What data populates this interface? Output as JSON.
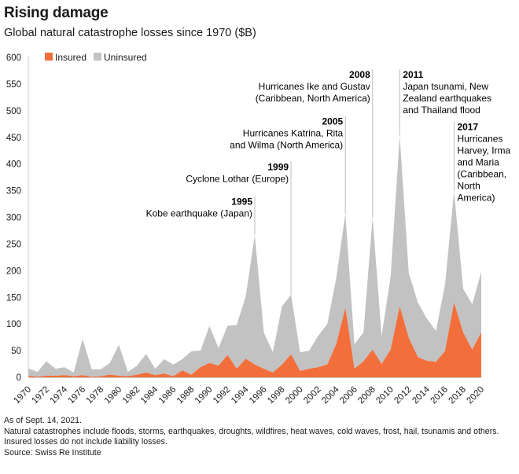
{
  "header": {
    "title": "Rising damage",
    "subtitle": "Global natural catastrophe losses since 1970 ($B)"
  },
  "footnotes": [
    "As of Sept. 14, 2021.",
    "Natural catastrophes include floods, storms, earthquakes, droughts, wildfires, heat waves, cold waves, frost, hail, tsunamis and others.",
    "Insured losses do not include liability losses.",
    "Source: Swiss Re Institute"
  ],
  "colors": {
    "insured": "#F26E3A",
    "uninsured": "#C2C2C2",
    "axis": "#cfcfcf",
    "annotation_line": "#bdbdbd"
  },
  "chart_data": {
    "type": "area",
    "stacked": true,
    "title": "Rising damage",
    "subtitle": "Global natural catastrophe losses since 1970 ($B)",
    "xlabel": "",
    "ylabel": "",
    "ylim": [
      0,
      600
    ],
    "yticks": [
      0,
      50,
      100,
      150,
      200,
      250,
      300,
      350,
      400,
      450,
      500,
      550,
      600
    ],
    "xlim": [
      1970,
      2020
    ],
    "xticks": [
      1970,
      1972,
      1974,
      1976,
      1978,
      1980,
      1982,
      1984,
      1986,
      1988,
      1990,
      1992,
      1994,
      1996,
      1998,
      2000,
      2002,
      2004,
      2006,
      2008,
      2010,
      2012,
      2014,
      2016,
      2018,
      2020
    ],
    "grid": false,
    "legend": {
      "placement": "top-left",
      "entries": [
        "Insured",
        "Uninsured"
      ]
    },
    "x": [
      1970,
      1971,
      1972,
      1973,
      1974,
      1975,
      1976,
      1977,
      1978,
      1979,
      1980,
      1981,
      1982,
      1983,
      1984,
      1985,
      1986,
      1987,
      1988,
      1989,
      1990,
      1991,
      1992,
      1993,
      1994,
      1995,
      1996,
      1997,
      1998,
      1999,
      2000,
      2001,
      2002,
      2003,
      2004,
      2005,
      2006,
      2007,
      2008,
      2009,
      2010,
      2011,
      2012,
      2013,
      2014,
      2015,
      2016,
      2017,
      2018,
      2019,
      2020
    ],
    "total": [
      17,
      10,
      30,
      16,
      19,
      9,
      72,
      15,
      15,
      27,
      61,
      10,
      22,
      44,
      16,
      34,
      24,
      34,
      49,
      50,
      96,
      55,
      97,
      98,
      152,
      267,
      84,
      47,
      133,
      155,
      47,
      50,
      78,
      100,
      187,
      307,
      62,
      84,
      300,
      77,
      190,
      453,
      196,
      140,
      110,
      87,
      174,
      349,
      166,
      137,
      198
    ],
    "series": [
      {
        "name": "Insured",
        "values": [
          3,
          1,
          3,
          3,
          4,
          2,
          4,
          1,
          2,
          5,
          3,
          2,
          5,
          9,
          4,
          7,
          2,
          13,
          5,
          19,
          27,
          22,
          42,
          16,
          35,
          24,
          16,
          9,
          24,
          43,
          12,
          16,
          19,
          24,
          63,
          130,
          16,
          30,
          52,
          25,
          52,
          133,
          74,
          38,
          31,
          29,
          49,
          140,
          84,
          52,
          84
        ]
      },
      {
        "name": "Uninsured",
        "values": [
          14,
          9,
          27,
          13,
          15,
          7,
          68,
          14,
          13,
          22,
          58,
          8,
          17,
          35,
          12,
          27,
          22,
          21,
          44,
          31,
          69,
          33,
          55,
          82,
          117,
          243,
          68,
          38,
          109,
          112,
          35,
          34,
          59,
          76,
          124,
          177,
          46,
          54,
          248,
          52,
          138,
          320,
          122,
          102,
          79,
          58,
          125,
          209,
          82,
          85,
          114
        ]
      }
    ],
    "annotations": [
      {
        "year": "1995",
        "x": 1995,
        "top": 340,
        "lines": [
          "Kobe earthquake (Japan)"
        ],
        "align": "right"
      },
      {
        "year": "1999",
        "x": 1999,
        "top": 405,
        "lines": [
          "Cyclone Lothar (Europe)"
        ],
        "align": "right"
      },
      {
        "year": "2005",
        "x": 2005,
        "top": 490,
        "lines": [
          "Hurricanes Katrina, Rita",
          "and Wilma (North America)"
        ],
        "align": "right"
      },
      {
        "year": "2008",
        "x": 2008,
        "top": 578,
        "lines": [
          "Hurricanes Ike and Gustav",
          "(Caribbean, North America)"
        ],
        "align": "right"
      },
      {
        "year": "2011",
        "x": 2011,
        "top": 578,
        "lines": [
          "Japan tsunami, New",
          "Zealand earthquakes",
          "and Thailand flood"
        ],
        "align": "left"
      },
      {
        "year": "2017",
        "x": 2017,
        "top": 480,
        "lines": [
          "Hurricanes",
          "Harvey, Irma",
          "and Maria",
          "(Caribbean,",
          "North",
          "America)"
        ],
        "align": "left"
      }
    ]
  }
}
